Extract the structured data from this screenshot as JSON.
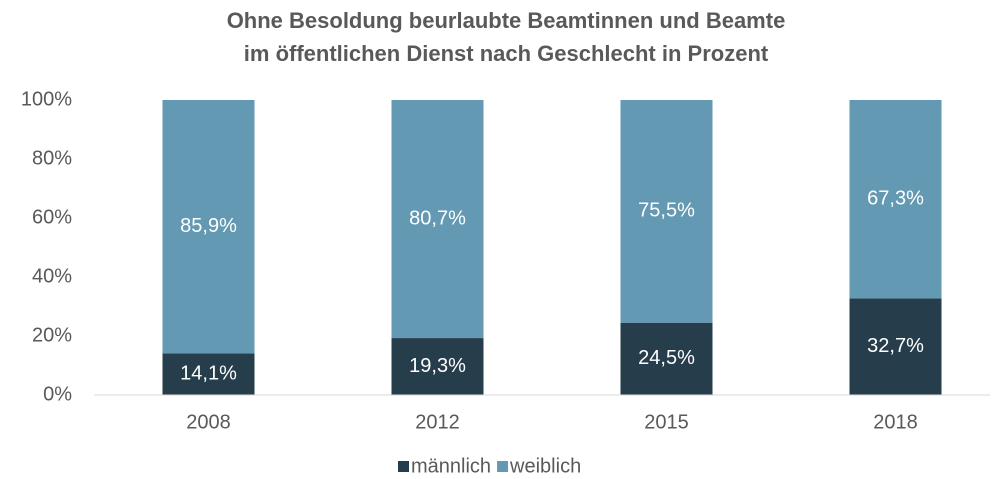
{
  "chart_data": {
    "type": "stacked_bar",
    "title": [
      "Ohne Besoldung beurlaubte Beamtinnen und Beamte",
      "im öffentlichen Dienst nach Geschlecht in Prozent"
    ],
    "categories": [
      "2008",
      "2012",
      "2015",
      "2018"
    ],
    "series": [
      {
        "name": "männlich",
        "color": "#263d4b",
        "values": [
          14.1,
          19.3,
          24.5,
          32.7
        ],
        "value_labels": [
          "14,1%",
          "19,3%",
          "24,5%",
          "32,7%"
        ]
      },
      {
        "name": "weiblich",
        "color": "#6399b2",
        "values": [
          85.9,
          80.7,
          75.5,
          67.3
        ],
        "value_labels": [
          "85,9%",
          "80,7%",
          "75,5%",
          "67,3%"
        ]
      }
    ],
    "ylim": [
      0,
      100
    ],
    "yticks": [
      {
        "value": 0,
        "label": "0%"
      },
      {
        "value": 20,
        "label": "20%"
      },
      {
        "value": 40,
        "label": "40%"
      },
      {
        "value": 60,
        "label": "60%"
      },
      {
        "value": 80,
        "label": "80%"
      },
      {
        "value": 100,
        "label": "100%"
      }
    ],
    "legend": "bottom"
  }
}
